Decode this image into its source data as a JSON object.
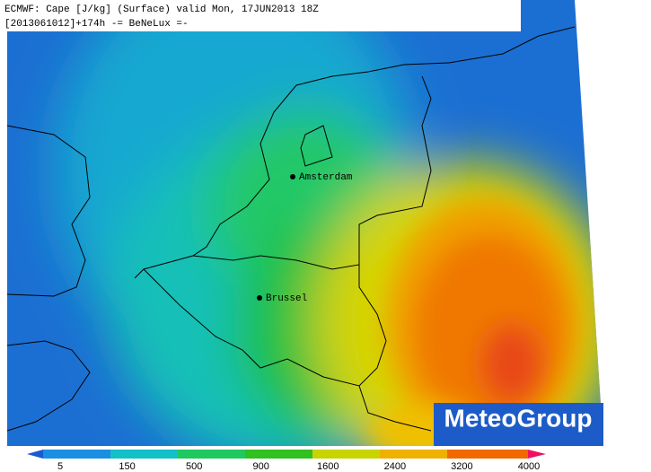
{
  "header": {
    "line1": "ECMWF: Cape [J/kg] (Surface) valid Mon, 17JUN2013 18Z",
    "line2": "[2013061012]+174h  -= BeNeLux =-"
  },
  "cities": [
    {
      "label": "Amsterdam"
    },
    {
      "label": "Brussel"
    }
  ],
  "logo": "MeteoGroup",
  "colorbar": {
    "ticks": [
      5,
      150,
      500,
      900,
      1600,
      2400,
      3200,
      4000
    ]
  }
}
